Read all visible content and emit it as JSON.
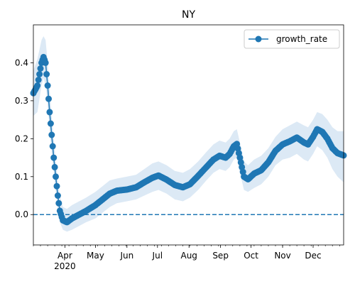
{
  "chart_data": {
    "type": "line",
    "title": "NY",
    "xlabel": "",
    "ylabel": "",
    "x_range": [
      "2020-03-01",
      "2020-12-31"
    ],
    "ylim": [
      -0.08,
      0.5
    ],
    "y_ticks": [
      0.0,
      0.1,
      0.2,
      0.3,
      0.4
    ],
    "y_tick_labels": [
      "0.0",
      "0.1",
      "0.2",
      "0.3",
      "0.4"
    ],
    "x_ticks": [
      {
        "date": "2020-04-01",
        "label": "Apr",
        "sublabel": "2020"
      },
      {
        "date": "2020-05-01",
        "label": "May",
        "sublabel": ""
      },
      {
        "date": "2020-06-01",
        "label": "Jun",
        "sublabel": ""
      },
      {
        "date": "2020-07-01",
        "label": "Jul",
        "sublabel": ""
      },
      {
        "date": "2020-08-01",
        "label": "Aug",
        "sublabel": ""
      },
      {
        "date": "2020-09-01",
        "label": "Sep",
        "sublabel": ""
      },
      {
        "date": "2020-10-01",
        "label": "Oct",
        "sublabel": ""
      },
      {
        "date": "2020-11-01",
        "label": "Nov",
        "sublabel": ""
      },
      {
        "date": "2020-12-01",
        "label": "Dec",
        "sublabel": ""
      }
    ],
    "reference_line": {
      "y": 0.0,
      "style": "dashed",
      "color": "#1f77b4"
    },
    "legend": {
      "position": "top-right",
      "entries": [
        "growth_rate"
      ]
    },
    "grid": false,
    "series": [
      {
        "name": "growth_rate",
        "color": "#1f77b4",
        "band_color": "#dce9f5",
        "marker": "circle",
        "points": [
          [
            "2020-03-01",
            0.32,
            0.26,
            0.38
          ],
          [
            "2020-03-05",
            0.34,
            0.27,
            0.41
          ],
          [
            "2020-03-09",
            0.4,
            0.34,
            0.46
          ],
          [
            "2020-03-11",
            0.415,
            0.36,
            0.47
          ],
          [
            "2020-03-13",
            0.4,
            0.34,
            0.46
          ],
          [
            "2020-03-15",
            0.34,
            0.29,
            0.4
          ],
          [
            "2020-03-17",
            0.27,
            0.22,
            0.33
          ],
          [
            "2020-03-19",
            0.21,
            0.16,
            0.26
          ],
          [
            "2020-03-21",
            0.15,
            0.11,
            0.2
          ],
          [
            "2020-03-23",
            0.1,
            0.06,
            0.14
          ],
          [
            "2020-03-25",
            0.05,
            0.01,
            0.09
          ],
          [
            "2020-03-27",
            0.01,
            -0.02,
            0.05
          ],
          [
            "2020-03-30",
            -0.015,
            -0.04,
            0.02
          ],
          [
            "2020-04-03",
            -0.02,
            -0.045,
            0.015
          ],
          [
            "2020-04-08",
            -0.01,
            -0.04,
            0.025
          ],
          [
            "2020-04-15",
            0.0,
            -0.03,
            0.035
          ],
          [
            "2020-04-22",
            0.01,
            -0.02,
            0.045
          ],
          [
            "2020-05-01",
            0.025,
            -0.01,
            0.06
          ],
          [
            "2020-05-08",
            0.04,
            0.005,
            0.075
          ],
          [
            "2020-05-15",
            0.055,
            0.02,
            0.09
          ],
          [
            "2020-05-22",
            0.063,
            0.03,
            0.095
          ],
          [
            "2020-06-01",
            0.066,
            0.035,
            0.1
          ],
          [
            "2020-06-10",
            0.072,
            0.04,
            0.105
          ],
          [
            "2020-06-18",
            0.085,
            0.05,
            0.12
          ],
          [
            "2020-06-26",
            0.097,
            0.06,
            0.135
          ],
          [
            "2020-07-02",
            0.103,
            0.065,
            0.14
          ],
          [
            "2020-07-10",
            0.092,
            0.055,
            0.13
          ],
          [
            "2020-07-18",
            0.078,
            0.04,
            0.115
          ],
          [
            "2020-07-26",
            0.072,
            0.035,
            0.11
          ],
          [
            "2020-08-02",
            0.08,
            0.045,
            0.12
          ],
          [
            "2020-08-10",
            0.102,
            0.065,
            0.14
          ],
          [
            "2020-08-18",
            0.125,
            0.09,
            0.165
          ],
          [
            "2020-08-25",
            0.145,
            0.11,
            0.185
          ],
          [
            "2020-08-31",
            0.155,
            0.12,
            0.195
          ],
          [
            "2020-09-06",
            0.15,
            0.115,
            0.19
          ],
          [
            "2020-09-10",
            0.16,
            0.125,
            0.2
          ],
          [
            "2020-09-14",
            0.18,
            0.145,
            0.22
          ],
          [
            "2020-09-17",
            0.186,
            0.15,
            0.225
          ],
          [
            "2020-09-20",
            0.15,
            0.11,
            0.19
          ],
          [
            "2020-09-24",
            0.1,
            0.065,
            0.14
          ],
          [
            "2020-09-28",
            0.093,
            0.06,
            0.13
          ],
          [
            "2020-10-04",
            0.108,
            0.07,
            0.145
          ],
          [
            "2020-10-11",
            0.117,
            0.08,
            0.155
          ],
          [
            "2020-10-18",
            0.138,
            0.1,
            0.175
          ],
          [
            "2020-10-25",
            0.168,
            0.13,
            0.205
          ],
          [
            "2020-11-01",
            0.185,
            0.145,
            0.225
          ],
          [
            "2020-11-08",
            0.193,
            0.15,
            0.235
          ],
          [
            "2020-11-15",
            0.203,
            0.16,
            0.245
          ],
          [
            "2020-11-22",
            0.19,
            0.145,
            0.235
          ],
          [
            "2020-11-26",
            0.185,
            0.14,
            0.23
          ],
          [
            "2020-12-01",
            0.205,
            0.16,
            0.25
          ],
          [
            "2020-12-05",
            0.225,
            0.18,
            0.27
          ],
          [
            "2020-12-10",
            0.218,
            0.17,
            0.265
          ],
          [
            "2020-12-15",
            0.2,
            0.15,
            0.25
          ],
          [
            "2020-12-20",
            0.175,
            0.12,
            0.23
          ],
          [
            "2020-12-25",
            0.162,
            0.1,
            0.22
          ],
          [
            "2020-12-31",
            0.156,
            0.085,
            0.22
          ]
        ]
      }
    ]
  }
}
